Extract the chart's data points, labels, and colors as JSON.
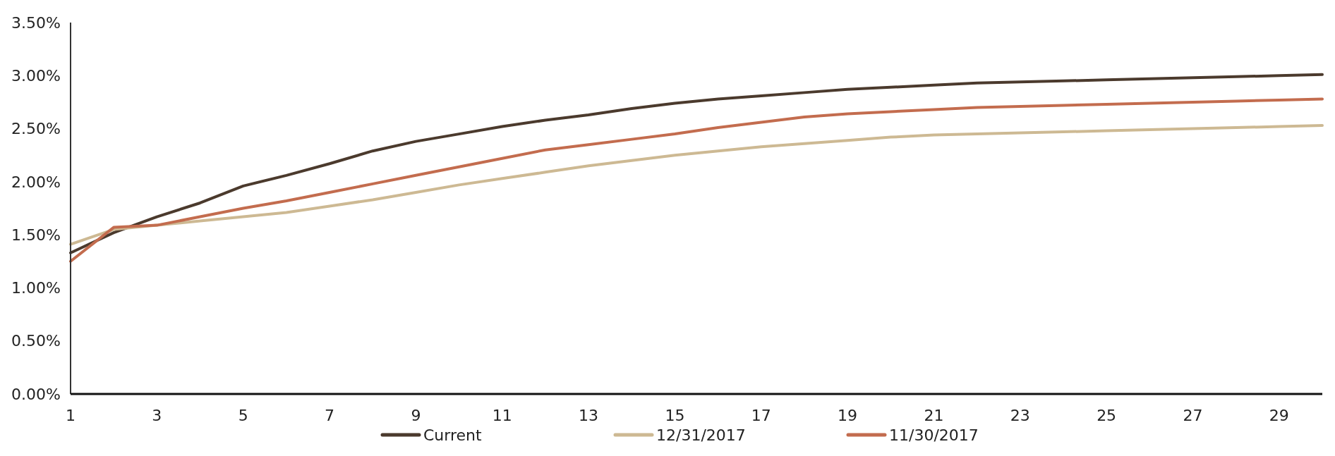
{
  "chart_data": {
    "type": "line",
    "x": [
      1,
      2,
      3,
      4,
      5,
      6,
      7,
      8,
      9,
      10,
      11,
      12,
      13,
      14,
      15,
      16,
      17,
      18,
      19,
      20,
      21,
      22,
      23,
      24,
      25,
      26,
      27,
      28,
      29,
      30
    ],
    "series": [
      {
        "name": "Current",
        "color": "#4b3a2d",
        "values": [
          1.33,
          1.52,
          1.67,
          1.8,
          1.96,
          2.06,
          2.17,
          2.29,
          2.38,
          2.45,
          2.52,
          2.58,
          2.63,
          2.69,
          2.74,
          2.78,
          2.81,
          2.84,
          2.87,
          2.89,
          2.91,
          2.93,
          2.94,
          2.95,
          2.96,
          2.97,
          2.98,
          2.99,
          3.0,
          3.01
        ]
      },
      {
        "name": "12/31/2017",
        "color": "#cdb993",
        "values": [
          1.41,
          1.55,
          1.59,
          1.63,
          1.67,
          1.71,
          1.77,
          1.83,
          1.9,
          1.97,
          2.03,
          2.09,
          2.15,
          2.2,
          2.25,
          2.29,
          2.33,
          2.36,
          2.39,
          2.42,
          2.44,
          2.45,
          2.46,
          2.47,
          2.48,
          2.49,
          2.5,
          2.51,
          2.52,
          2.53
        ]
      },
      {
        "name": "11/30/2017",
        "color": "#c36c4e",
        "values": [
          1.25,
          1.57,
          1.59,
          1.67,
          1.75,
          1.82,
          1.9,
          1.98,
          2.06,
          2.14,
          2.22,
          2.3,
          2.35,
          2.4,
          2.45,
          2.51,
          2.56,
          2.61,
          2.64,
          2.66,
          2.68,
          2.7,
          2.71,
          2.72,
          2.73,
          2.74,
          2.75,
          2.76,
          2.77,
          2.78
        ]
      }
    ],
    "xlim": [
      1,
      30
    ],
    "xticks": [
      1,
      3,
      5,
      7,
      9,
      11,
      13,
      15,
      17,
      19,
      21,
      23,
      25,
      27,
      29
    ],
    "ylim": [
      0,
      3.5
    ],
    "yticks": [
      {
        "value": 0,
        "label": "0.00%"
      },
      {
        "value": 0.5,
        "label": "0.50%"
      },
      {
        "value": 1,
        "label": "1.00%"
      },
      {
        "value": 1.5,
        "label": "1.50%"
      },
      {
        "value": 2,
        "label": "2.00%"
      },
      {
        "value": 2.5,
        "label": "2.50%"
      },
      {
        "value": 3,
        "label": "3.00%"
      },
      {
        "value": 3.5,
        "label": "3.50%"
      }
    ],
    "grid": false,
    "legend": "bottom",
    "line_style": "solid"
  }
}
